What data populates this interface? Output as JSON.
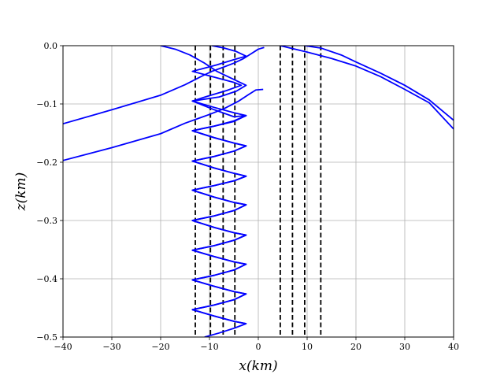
{
  "chart_data": {
    "type": "line",
    "title": "",
    "xlabel": "x(km)",
    "ylabel": "z(km)",
    "xlim": [
      -40,
      40
    ],
    "ylim": [
      -0.5,
      0.0
    ],
    "xticks": [
      -40,
      -30,
      -20,
      -10,
      0,
      10,
      20,
      30,
      40
    ],
    "xtick_labels": [
      "−40",
      "−30",
      "−20",
      "−10",
      "0",
      "10",
      "20",
      "30",
      "40"
    ],
    "yticks": [
      0.0,
      -0.1,
      -0.2,
      -0.3,
      -0.4,
      -0.5
    ],
    "ytick_labels": [
      "0.0",
      "−0.1",
      "−0.2",
      "−0.3",
      "−0.4",
      "−0.5"
    ],
    "grid": true,
    "line_color": "#0000ff",
    "vline_color": "#000000",
    "vertical_dashed_lines_x": [
      -12.9,
      -9.8,
      -7.2,
      -4.8,
      4.5,
      7.0,
      9.5,
      12.8
    ],
    "series": [
      {
        "values": [
          [
            -40.0,
            -0.134
          ],
          [
            -30.0,
            -0.11
          ],
          [
            -20.0,
            -0.085
          ],
          [
            -15.0,
            -0.067
          ],
          [
            -12.9,
            -0.058
          ],
          [
            -11.0,
            -0.05
          ],
          [
            -9.5,
            -0.044
          ],
          [
            -7.5,
            -0.038
          ],
          [
            -5.0,
            -0.03
          ],
          [
            -3.0,
            -0.022
          ],
          [
            -1.5,
            -0.014
          ],
          [
            0.0,
            -0.006
          ],
          [
            1.2,
            -0.003
          ]
        ]
      },
      {
        "values": [
          [
            -40.0,
            -0.197
          ],
          [
            -30.0,
            -0.175
          ],
          [
            -20.0,
            -0.151
          ],
          [
            -15.0,
            -0.133
          ],
          [
            -10.0,
            -0.118
          ],
          [
            -7.0,
            -0.108
          ],
          [
            -4.0,
            -0.095
          ],
          [
            -2.0,
            -0.084
          ],
          [
            -0.5,
            -0.076
          ],
          [
            1.0,
            -0.075
          ]
        ]
      },
      {
        "values": [
          [
            -20.0,
            0.0
          ],
          [
            -17.0,
            -0.006
          ],
          [
            -14.0,
            -0.016
          ],
          [
            -11.0,
            -0.03
          ],
          [
            -8.5,
            -0.044
          ],
          [
            -5.5,
            -0.056
          ],
          [
            -2.5,
            -0.068
          ],
          [
            -4.5,
            -0.078
          ],
          [
            -8.0,
            -0.088
          ],
          [
            -13.5,
            -0.095
          ],
          [
            -9.0,
            -0.11
          ],
          [
            -5.0,
            -0.122
          ],
          [
            -2.5,
            -0.12
          ],
          [
            -5.0,
            -0.13
          ],
          [
            -9.0,
            -0.138
          ],
          [
            -13.5,
            -0.146
          ],
          [
            -9.0,
            -0.158
          ],
          [
            -5.0,
            -0.167
          ],
          [
            -2.5,
            -0.172
          ],
          [
            -5.0,
            -0.181
          ],
          [
            -9.0,
            -0.19
          ],
          [
            -13.5,
            -0.198
          ],
          [
            -9.0,
            -0.21
          ],
          [
            -5.0,
            -0.219
          ],
          [
            -2.5,
            -0.224
          ],
          [
            -5.0,
            -0.232
          ],
          [
            -9.0,
            -0.24
          ],
          [
            -13.5,
            -0.248
          ],
          [
            -9.0,
            -0.26
          ],
          [
            -5.0,
            -0.269
          ],
          [
            -2.5,
            -0.273
          ],
          [
            -5.0,
            -0.283
          ],
          [
            -9.0,
            -0.292
          ],
          [
            -13.5,
            -0.3
          ],
          [
            -9.0,
            -0.312
          ],
          [
            -5.0,
            -0.321
          ],
          [
            -2.5,
            -0.325
          ],
          [
            -5.0,
            -0.334
          ],
          [
            -9.0,
            -0.343
          ],
          [
            -13.5,
            -0.351
          ],
          [
            -9.0,
            -0.362
          ],
          [
            -5.0,
            -0.371
          ],
          [
            -2.5,
            -0.375
          ],
          [
            -5.0,
            -0.385
          ],
          [
            -9.0,
            -0.394
          ],
          [
            -13.5,
            -0.402
          ],
          [
            -9.0,
            -0.413
          ],
          [
            -5.0,
            -0.422
          ],
          [
            -2.5,
            -0.426
          ],
          [
            -5.0,
            -0.436
          ],
          [
            -9.0,
            -0.445
          ],
          [
            -13.5,
            -0.453
          ],
          [
            -9.0,
            -0.464
          ],
          [
            -5.0,
            -0.473
          ],
          [
            -2.5,
            -0.477
          ],
          [
            -5.0,
            -0.485
          ],
          [
            -8.0,
            -0.493
          ],
          [
            -11.0,
            -0.5
          ]
        ]
      },
      {
        "values": [
          [
            -9.5,
            0.0
          ],
          [
            -7.0,
            -0.004
          ],
          [
            -4.5,
            -0.01
          ],
          [
            -2.5,
            -0.018
          ],
          [
            -5.0,
            -0.024
          ],
          [
            -8.5,
            -0.033
          ],
          [
            -13.5,
            -0.044
          ],
          [
            -9.0,
            -0.054
          ],
          [
            -5.0,
            -0.063
          ],
          [
            -3.5,
            -0.068
          ],
          [
            -6.5,
            -0.077
          ],
          [
            -10.5,
            -0.087
          ],
          [
            -13.5,
            -0.095
          ],
          [
            -9.0,
            -0.106
          ],
          [
            -5.0,
            -0.115
          ],
          [
            -2.5,
            -0.12
          ],
          [
            -5.0,
            -0.129
          ],
          [
            -9.0,
            -0.138
          ],
          [
            -13.5,
            -0.146
          ],
          [
            -9.0,
            -0.158
          ],
          [
            -5.0,
            -0.167
          ],
          [
            -2.5,
            -0.172
          ],
          [
            -5.0,
            -0.181
          ],
          [
            -9.0,
            -0.19
          ],
          [
            -13.5,
            -0.198
          ],
          [
            -9.0,
            -0.21
          ],
          [
            -5.0,
            -0.219
          ],
          [
            -2.5,
            -0.224
          ],
          [
            -5.0,
            -0.232
          ],
          [
            -9.0,
            -0.24
          ],
          [
            -13.5,
            -0.248
          ],
          [
            -9.0,
            -0.26
          ],
          [
            -5.0,
            -0.269
          ],
          [
            -2.5,
            -0.273
          ],
          [
            -5.0,
            -0.283
          ],
          [
            -9.0,
            -0.292
          ],
          [
            -13.5,
            -0.3
          ],
          [
            -9.0,
            -0.312
          ],
          [
            -5.0,
            -0.321
          ],
          [
            -2.5,
            -0.325
          ],
          [
            -5.0,
            -0.334
          ],
          [
            -9.0,
            -0.343
          ],
          [
            -13.5,
            -0.351
          ],
          [
            -9.0,
            -0.362
          ],
          [
            -5.0,
            -0.371
          ],
          [
            -2.5,
            -0.375
          ],
          [
            -5.0,
            -0.385
          ],
          [
            -9.0,
            -0.394
          ],
          [
            -13.5,
            -0.402
          ],
          [
            -9.0,
            -0.413
          ],
          [
            -5.0,
            -0.422
          ],
          [
            -2.5,
            -0.426
          ],
          [
            -5.0,
            -0.436
          ],
          [
            -9.0,
            -0.445
          ],
          [
            -13.5,
            -0.453
          ],
          [
            -9.0,
            -0.464
          ],
          [
            -5.0,
            -0.473
          ],
          [
            -2.5,
            -0.477
          ]
        ]
      },
      {
        "values": [
          [
            4.5,
            0.0
          ],
          [
            10.0,
            -0.011
          ],
          [
            15.0,
            -0.022
          ],
          [
            20.0,
            -0.035
          ],
          [
            25.0,
            -0.053
          ],
          [
            30.0,
            -0.075
          ],
          [
            35.0,
            -0.098
          ],
          [
            40.0,
            -0.143
          ]
        ]
      },
      {
        "values": [
          [
            9.5,
            0.0
          ],
          [
            12.8,
            -0.004
          ],
          [
            17.0,
            -0.016
          ],
          [
            20.0,
            -0.028
          ],
          [
            25.0,
            -0.047
          ],
          [
            30.0,
            -0.068
          ],
          [
            35.0,
            -0.093
          ],
          [
            40.0,
            -0.128
          ]
        ]
      }
    ]
  }
}
